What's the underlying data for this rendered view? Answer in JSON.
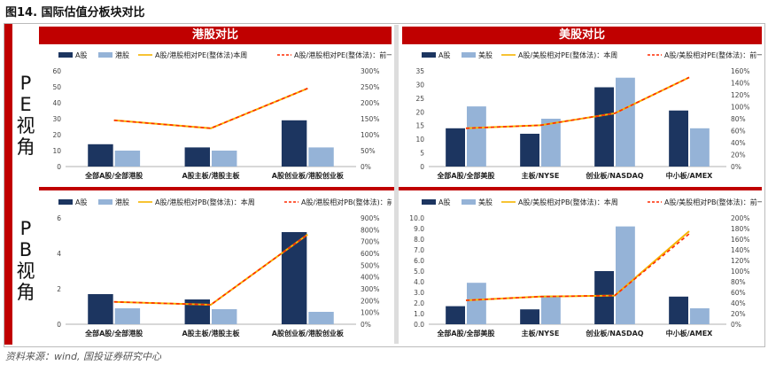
{
  "figure_title": "图14. 国际估值分板块对比",
  "source": "资料来源：wind, 国投证券研究中心",
  "colors": {
    "accent": "#c00000",
    "a_share": "#1c3560",
    "overseas": "#95b3d7",
    "line_current": "#f5b400",
    "line_prev": "#ff2a00"
  },
  "rows": [
    {
      "label": "PE视角",
      "chars": [
        "P",
        "E",
        "视",
        "角"
      ]
    },
    {
      "label": "PB视角",
      "chars": [
        "P",
        "B",
        "视",
        "角"
      ]
    }
  ],
  "columns": [
    {
      "header": "港股对比"
    },
    {
      "header": "美股对比"
    }
  ],
  "chart_data": [
    {
      "id": "hk-pe",
      "type": "bar",
      "categories": [
        "全部A股/全部港股",
        "A股主板/港股主板",
        "A股创业板/港股创业板"
      ],
      "series": [
        {
          "name": "A股",
          "values": [
            14,
            12,
            29
          ],
          "axis": "left"
        },
        {
          "name": "港股",
          "values": [
            10,
            10,
            12
          ],
          "axis": "left"
        },
        {
          "name": "A股/港股相对PE(整体法)本周",
          "type": "line",
          "values": [
            145,
            120,
            245
          ],
          "axis": "right"
        },
        {
          "name": "A股/港股相对PE(整体法)：前一周",
          "type": "line",
          "values": [
            145,
            120,
            245
          ],
          "axis": "right"
        }
      ],
      "ylim": [
        0,
        60
      ],
      "yticks": [
        0,
        10,
        20,
        30,
        40,
        50,
        60
      ],
      "y2lim": [
        0,
        300
      ],
      "y2ticks": [
        "0%",
        "50%",
        "100%",
        "150%",
        "200%",
        "250%",
        "300%"
      ],
      "legend_position": "top"
    },
    {
      "id": "us-pe",
      "type": "bar",
      "categories": [
        "全部A股/全部美股",
        "主板/NYSE",
        "创业板/NASDAQ",
        "中小板/AMEX"
      ],
      "series": [
        {
          "name": "A股",
          "values": [
            14,
            12,
            29,
            20.5
          ],
          "axis": "left"
        },
        {
          "name": "美股",
          "values": [
            22,
            17.5,
            32.5,
            14
          ],
          "axis": "left"
        },
        {
          "name": "A股/美股相对PE(整体法)：本周",
          "type": "line",
          "values": [
            64,
            69,
            89,
            149
          ],
          "axis": "right"
        },
        {
          "name": "A股/美股相对PE(整体法)：前一周",
          "type": "line",
          "values": [
            64,
            69,
            89,
            149
          ],
          "axis": "right"
        }
      ],
      "ylim": [
        0,
        35
      ],
      "yticks": [
        0,
        5,
        10,
        15,
        20,
        25,
        30,
        35
      ],
      "y2lim": [
        0,
        160
      ],
      "y2ticks": [
        "0%",
        "20%",
        "40%",
        "60%",
        "80%",
        "100%",
        "120%",
        "140%",
        "160%"
      ],
      "legend_position": "top"
    },
    {
      "id": "hk-pb",
      "type": "bar",
      "categories": [
        "全部A股/全部港股",
        "A股主板/港股主板",
        "A股创业板/港股创业板"
      ],
      "series": [
        {
          "name": "A股",
          "values": [
            1.7,
            1.4,
            5.2
          ],
          "axis": "left"
        },
        {
          "name": "港股",
          "values": [
            0.9,
            0.85,
            0.7
          ],
          "axis": "left"
        },
        {
          "name": "A股/港股相对PB(整体法)：本周",
          "type": "line",
          "values": [
            190,
            165,
            760
          ],
          "axis": "right"
        },
        {
          "name": "A股/港股相对PB(整体法)：前一周",
          "type": "line",
          "values": [
            190,
            165,
            760
          ],
          "axis": "right"
        }
      ],
      "ylim": [
        0,
        6
      ],
      "yticks": [
        0,
        2,
        4,
        6
      ],
      "y2lim": [
        0,
        900
      ],
      "y2ticks": [
        "0%",
        "100%",
        "200%",
        "300%",
        "400%",
        "500%",
        "600%",
        "700%",
        "800%",
        "900%"
      ],
      "legend_position": "top"
    },
    {
      "id": "us-pb",
      "type": "bar",
      "categories": [
        "全部A股/全部美股",
        "主板/NYSE",
        "创业板/NASDAQ",
        "中小板/AMEX"
      ],
      "series": [
        {
          "name": "A股",
          "values": [
            1.7,
            1.4,
            5.0,
            2.6
          ],
          "axis": "left"
        },
        {
          "name": "美股",
          "values": [
            3.9,
            2.7,
            9.2,
            1.5
          ],
          "axis": "left"
        },
        {
          "name": "A股/美股相对PB(整体法)：本周",
          "type": "line",
          "values": [
            45,
            52,
            54,
            175
          ],
          "axis": "right"
        },
        {
          "name": "A股/美股相对PB(整体法)：前一周",
          "type": "line",
          "values": [
            45,
            52,
            54,
            170
          ],
          "axis": "right"
        }
      ],
      "ylim": [
        0,
        10
      ],
      "yticks": [
        "0.0",
        "1.0",
        "2.0",
        "3.0",
        "4.0",
        "5.0",
        "6.0",
        "7.0",
        "8.0",
        "9.0",
        "10.0"
      ],
      "y2lim": [
        0,
        200
      ],
      "y2ticks": [
        "0%",
        "20%",
        "40%",
        "60%",
        "80%",
        "100%",
        "120%",
        "140%",
        "160%",
        "180%",
        "200%"
      ],
      "legend_position": "top"
    }
  ]
}
